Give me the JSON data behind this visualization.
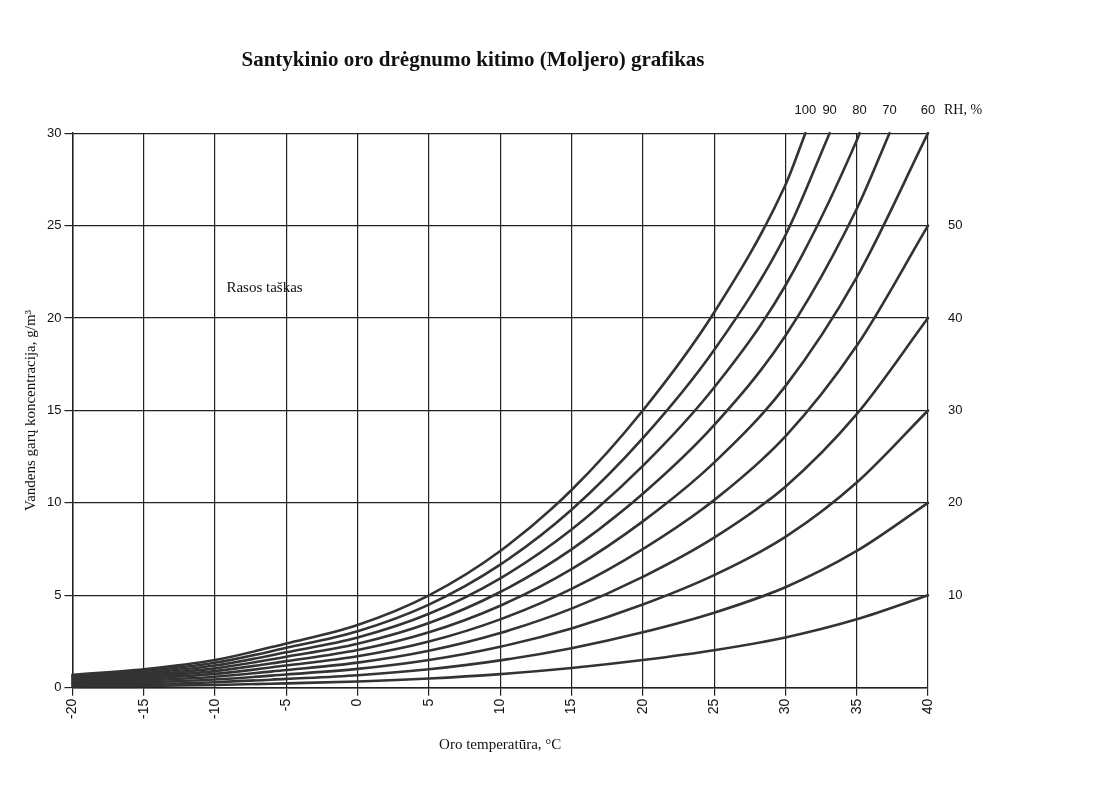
{
  "chart_data": {
    "type": "line",
    "title": "Santykinio oro drėgnumo kitimo (Moljero) grafikas",
    "xlabel": "Oro temperatūra, °C",
    "ylabel": "Vandens garų koncentracija, g/m³",
    "legend_title": "RH, %",
    "annotations": [
      "Rasos taškas"
    ],
    "xlim": [
      -20,
      40
    ],
    "xticks": [
      -20,
      -15,
      -10,
      -5,
      0,
      5,
      10,
      15,
      20,
      25,
      30,
      35,
      40
    ],
    "ylim": [
      0,
      30
    ],
    "yticks": [
      0,
      5,
      10,
      15,
      20,
      25,
      30
    ],
    "grid": true,
    "legend": false,
    "marker": "none",
    "line_style": "solid",
    "series": [
      {
        "name": "100",
        "color": "#333333",
        "x": [
          -20,
          -15,
          -10,
          -5,
          0,
          5,
          10,
          15,
          20,
          25,
          30,
          31.4
        ],
        "values": [
          0.7,
          1.0,
          1.5,
          2.4,
          3.4,
          5.0,
          7.4,
          10.7,
          15.0,
          20.3,
          27.2,
          30
        ]
      },
      {
        "name": "90",
        "color": "#333333",
        "x": [
          -20,
          -15,
          -10,
          -5,
          0,
          5,
          10,
          15,
          20,
          25,
          30,
          33.1
        ],
        "values": [
          0.63,
          0.9,
          1.35,
          2.16,
          3.06,
          4.5,
          6.66,
          9.63,
          13.5,
          18.27,
          24.48,
          30
        ]
      },
      {
        "name": "80",
        "color": "#333333",
        "x": [
          -20,
          -15,
          -10,
          -5,
          0,
          5,
          10,
          15,
          20,
          25,
          30,
          35,
          35.2
        ],
        "values": [
          0.56,
          0.8,
          1.2,
          1.92,
          2.72,
          4.0,
          5.92,
          8.56,
          12.0,
          16.24,
          21.76,
          29.6,
          30
        ]
      },
      {
        "name": "70",
        "color": "#333333",
        "x": [
          -20,
          -15,
          -10,
          -5,
          0,
          5,
          10,
          15,
          20,
          25,
          30,
          35,
          37.3
        ],
        "values": [
          0.49,
          0.7,
          1.05,
          1.68,
          2.38,
          3.5,
          5.18,
          7.49,
          10.5,
          14.21,
          19.04,
          25.9,
          30
        ]
      },
      {
        "name": "60",
        "color": "#333333",
        "x": [
          -20,
          -15,
          -10,
          -5,
          0,
          5,
          10,
          15,
          20,
          25,
          30,
          35,
          40
        ],
        "values": [
          0.42,
          0.6,
          0.9,
          1.44,
          2.04,
          3.0,
          4.44,
          6.42,
          9.0,
          12.18,
          16.32,
          22.2,
          30
        ]
      },
      {
        "name": "50",
        "color": "#333333",
        "x": [
          -20,
          -15,
          -10,
          -5,
          0,
          5,
          10,
          15,
          20,
          25,
          30,
          35,
          40
        ],
        "values": [
          0.35,
          0.5,
          0.75,
          1.2,
          1.7,
          2.5,
          3.7,
          5.35,
          7.5,
          10.15,
          13.6,
          18.5,
          25
        ]
      },
      {
        "name": "40",
        "color": "#333333",
        "x": [
          -20,
          -15,
          -10,
          -5,
          0,
          5,
          10,
          15,
          20,
          25,
          30,
          35,
          40
        ],
        "values": [
          0.28,
          0.4,
          0.6,
          0.96,
          1.36,
          2.0,
          2.96,
          4.28,
          6.0,
          8.12,
          10.88,
          14.8,
          20
        ]
      },
      {
        "name": "30",
        "color": "#333333",
        "x": [
          -20,
          -15,
          -10,
          -5,
          0,
          5,
          10,
          15,
          20,
          25,
          30,
          35,
          40
        ],
        "values": [
          0.21,
          0.3,
          0.45,
          0.72,
          1.02,
          1.5,
          2.22,
          3.21,
          4.5,
          6.09,
          8.16,
          11.1,
          15
        ]
      },
      {
        "name": "20",
        "color": "#333333",
        "x": [
          -20,
          -15,
          -10,
          -5,
          0,
          5,
          10,
          15,
          20,
          25,
          30,
          35,
          40
        ],
        "values": [
          0.14,
          0.2,
          0.3,
          0.48,
          0.68,
          1.0,
          1.48,
          2.14,
          3.0,
          4.06,
          5.44,
          7.4,
          10
        ]
      },
      {
        "name": "10",
        "color": "#333333",
        "x": [
          -20,
          -15,
          -10,
          -5,
          0,
          5,
          10,
          15,
          20,
          25,
          30,
          35,
          40
        ],
        "values": [
          0.07,
          0.1,
          0.15,
          0.24,
          0.34,
          0.5,
          0.74,
          1.07,
          1.5,
          2.03,
          2.72,
          3.7,
          5
        ]
      }
    ]
  }
}
